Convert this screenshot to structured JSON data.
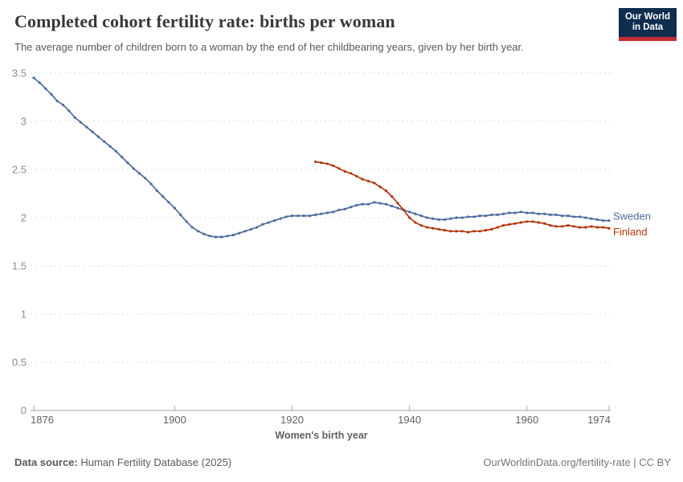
{
  "header": {
    "title": "Completed cohort fertility rate: births per woman",
    "subtitle": "The average number of children born to a woman by the end of her childbearing years, given by her birth year."
  },
  "logo": {
    "line1": "Our World",
    "line2": "in Data",
    "bg_color": "#102d50",
    "stripe_color": "#c32b2f"
  },
  "chart_data": {
    "type": "line",
    "xlabel": "Women's birth year",
    "ylabel": "",
    "xlim": [
      1876,
      1974
    ],
    "ylim": [
      0,
      3.5
    ],
    "grid": "dashed horizontal",
    "legend_position": "line-end-right",
    "xticks": [
      1876,
      1900,
      1920,
      1940,
      1960,
      1974
    ],
    "xtick_labels": [
      "1876",
      "1900",
      "1920",
      "1940",
      "1960",
      "1974"
    ],
    "ytick_values": [
      0,
      0.5,
      1,
      1.5,
      2,
      2.5,
      3,
      3.5
    ],
    "ytick_labels": [
      "0",
      "0.5",
      "1",
      "1.5",
      "2",
      "2.5",
      "3",
      "3.5"
    ],
    "series": [
      {
        "name": "Sweden",
        "color": "#4c6a9c",
        "start_year": 1876,
        "values": [
          3.45,
          3.4,
          3.34,
          3.28,
          3.21,
          3.17,
          3.11,
          3.04,
          2.99,
          2.94,
          2.89,
          2.84,
          2.79,
          2.74,
          2.69,
          2.63,
          2.57,
          2.51,
          2.46,
          2.41,
          2.35,
          2.28,
          2.22,
          2.16,
          2.1,
          2.03,
          1.96,
          1.9,
          1.86,
          1.83,
          1.81,
          1.8,
          1.8,
          1.81,
          1.82,
          1.84,
          1.86,
          1.88,
          1.9,
          1.93,
          1.95,
          1.97,
          1.99,
          2.01,
          2.02,
          2.02,
          2.02,
          2.02,
          2.03,
          2.04,
          2.05,
          2.06,
          2.08,
          2.09,
          2.11,
          2.13,
          2.14,
          2.14,
          2.16,
          2.15,
          2.14,
          2.12,
          2.1,
          2.08,
          2.06,
          2.04,
          2.02,
          2.0,
          1.99,
          1.98,
          1.98,
          1.99,
          2.0,
          2.0,
          2.01,
          2.01,
          2.02,
          2.02,
          2.03,
          2.03,
          2.04,
          2.05,
          2.05,
          2.06,
          2.05,
          2.05,
          2.04,
          2.04,
          2.03,
          2.03,
          2.02,
          2.02,
          2.01,
          2.01,
          2.0,
          1.99,
          1.98,
          1.97,
          1.97
        ]
      },
      {
        "name": "Finland",
        "color": "#b13507",
        "start_year": 1924,
        "values": [
          2.58,
          2.57,
          2.56,
          2.54,
          2.51,
          2.48,
          2.46,
          2.43,
          2.4,
          2.38,
          2.36,
          2.32,
          2.28,
          2.22,
          2.15,
          2.08,
          2.0,
          1.95,
          1.92,
          1.9,
          1.89,
          1.88,
          1.87,
          1.86,
          1.86,
          1.86,
          1.85,
          1.86,
          1.86,
          1.87,
          1.88,
          1.9,
          1.92,
          1.93,
          1.94,
          1.95,
          1.96,
          1.96,
          1.95,
          1.94,
          1.92,
          1.91,
          1.91,
          1.92,
          1.91,
          1.9,
          1.9,
          1.91,
          1.9,
          1.9,
          1.89
        ]
      }
    ]
  },
  "footer": {
    "source_label": "Data source:",
    "source_text": " Human Fertility Database (2025)",
    "license_text": "OurWorldinData.org/fertility-rate | CC BY"
  },
  "colors": {
    "gridline": "#dddddd",
    "axis_line": "#a3a3a3",
    "ytick_label": "#8b8b8b",
    "xtick_label": "#616161"
  }
}
